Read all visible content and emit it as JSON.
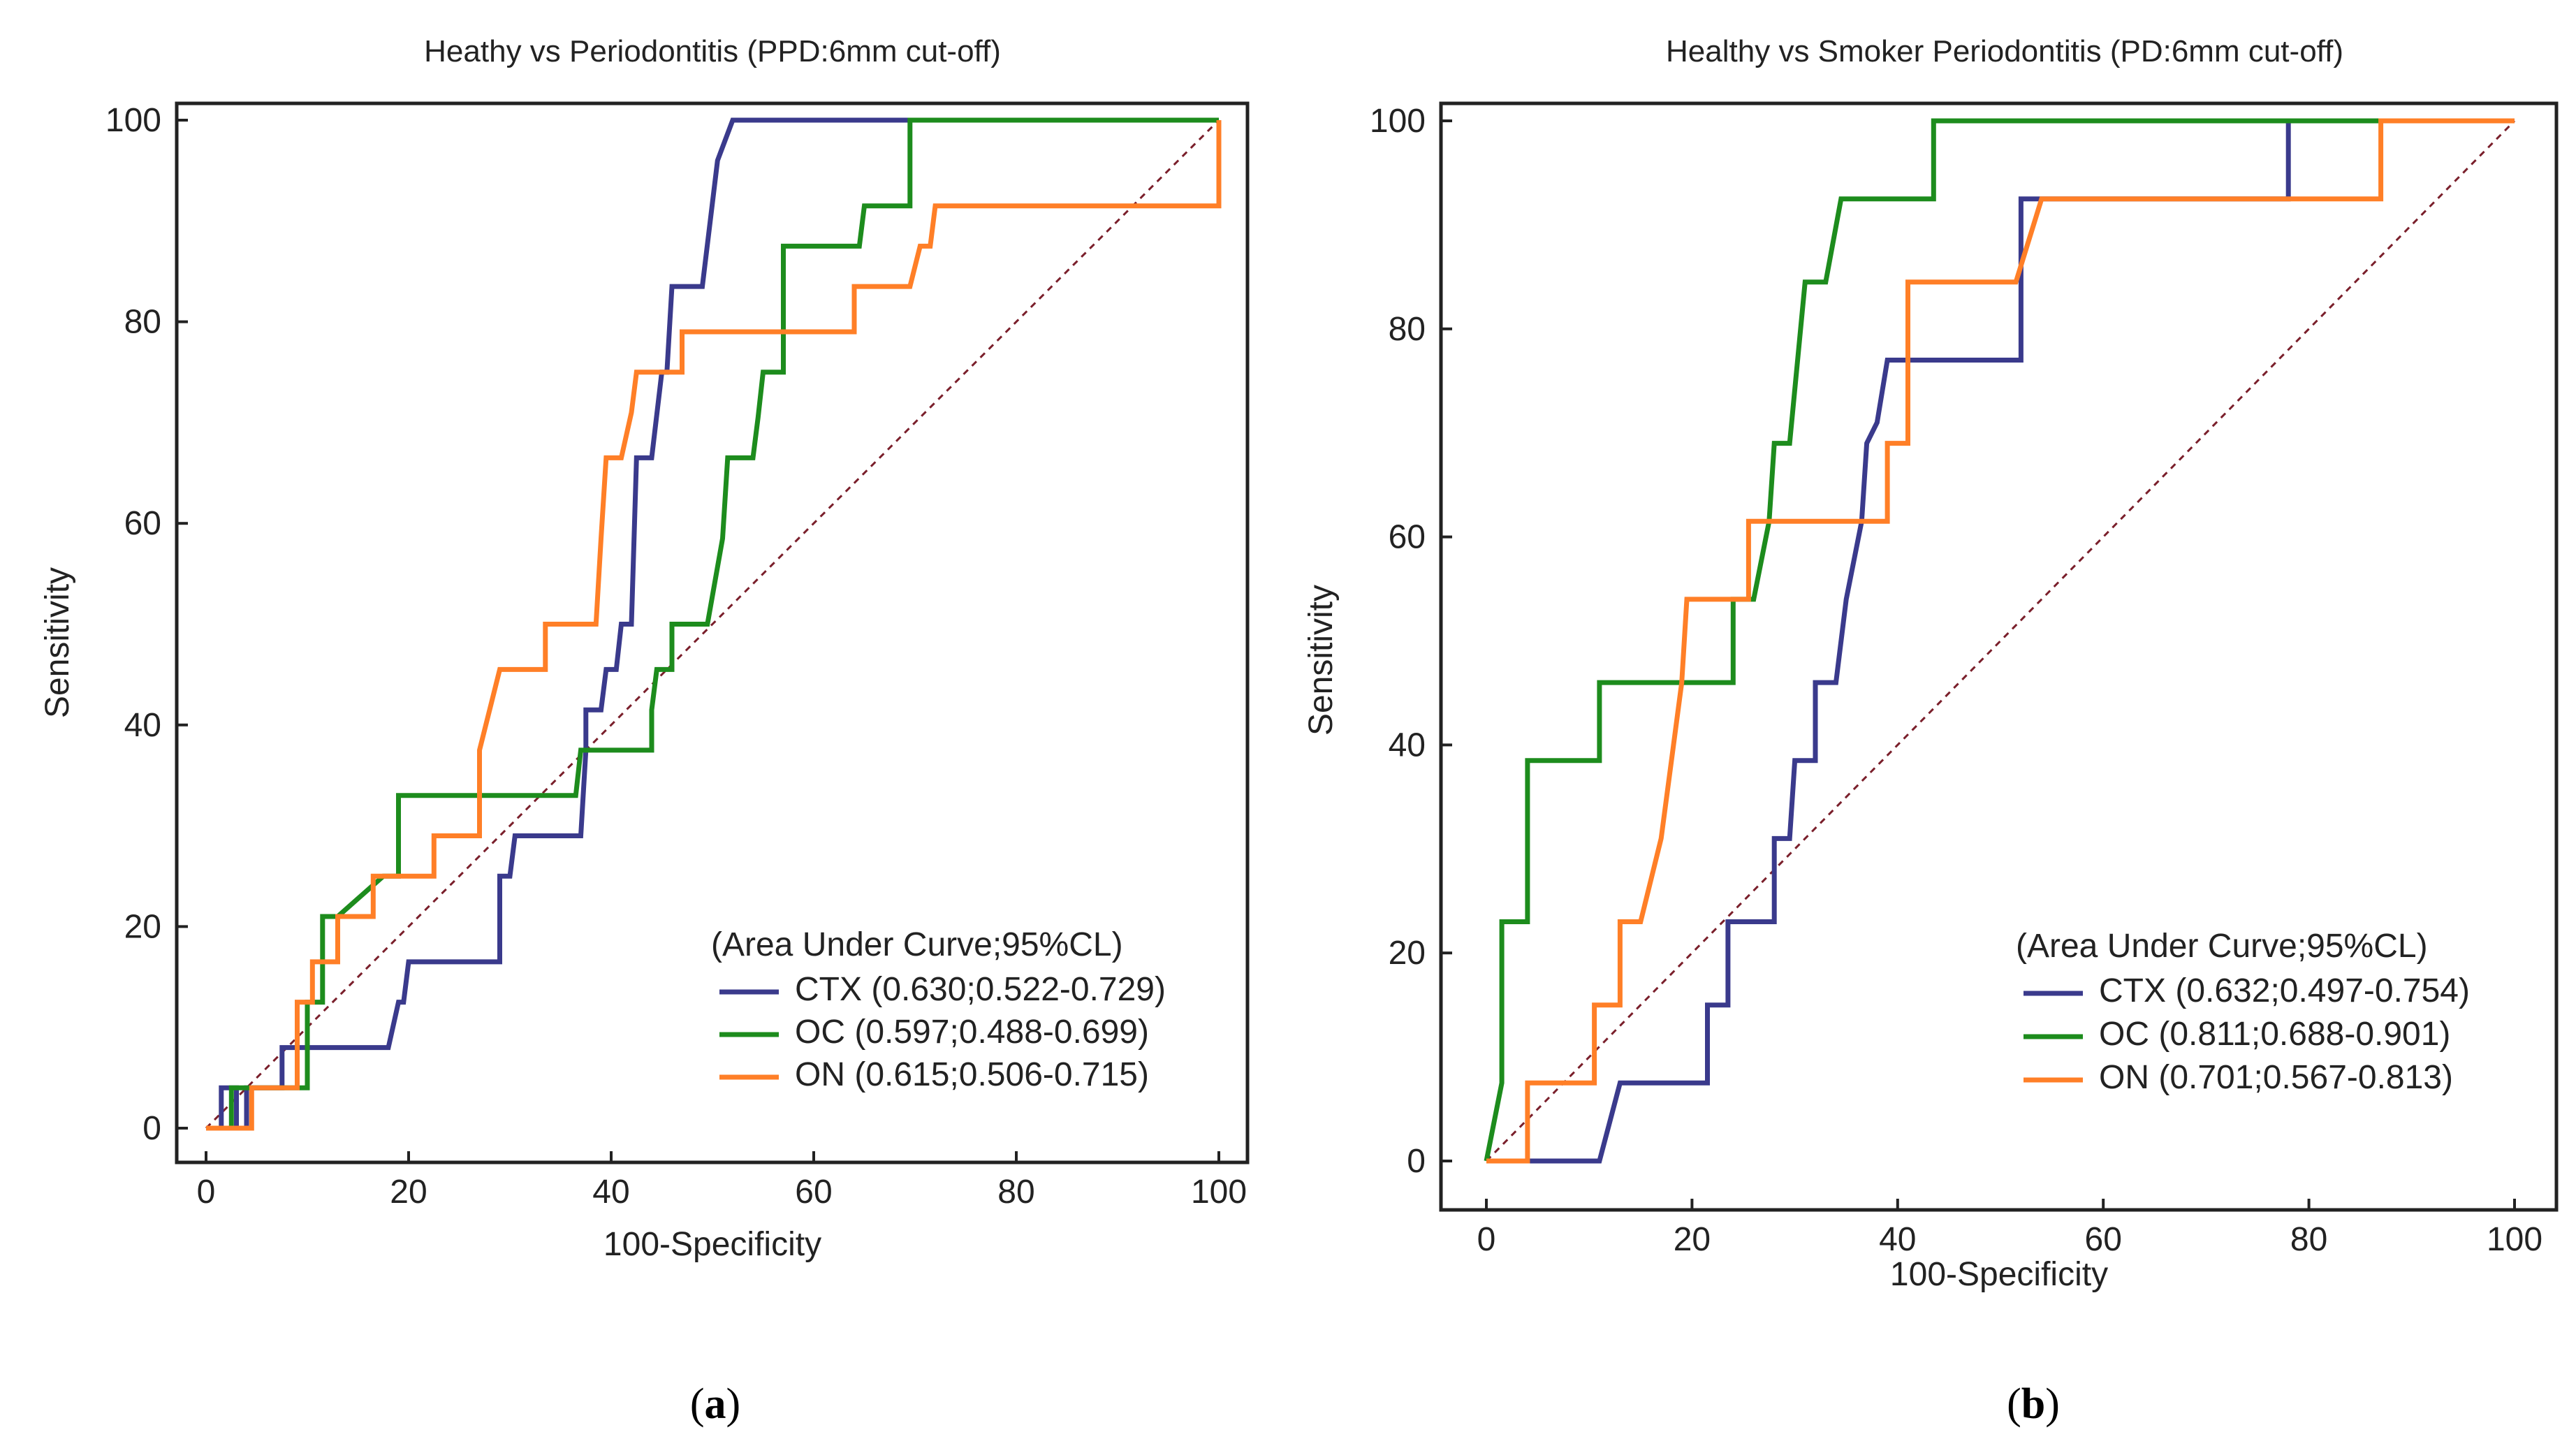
{
  "chart_data": [
    {
      "type": "line",
      "panel": "a",
      "caption_letter": "a",
      "title": "Heathy vs Periodontitis (PPD:6mm cut-off)",
      "xlabel": "100-Specificity",
      "ylabel": "Sensitivity",
      "xlim": [
        0,
        100
      ],
      "ylim": [
        0,
        100
      ],
      "xticks": [
        "0",
        "20",
        "40",
        "60",
        "80",
        "100"
      ],
      "yticks": [
        "0",
        "20",
        "40",
        "60",
        "80",
        "100"
      ],
      "legend_title": "(Area Under Curve;95%CL)",
      "legend_position": "bottom-right",
      "series": [
        {
          "name": "CTX (0.630;0.522-0.729)",
          "color": "#3a3a8c",
          "points": [
            [
              0,
              0
            ],
            [
              1.5,
              0
            ],
            [
              1.5,
              4
            ],
            [
              3,
              4
            ],
            [
              3,
              0
            ],
            [
              4,
              0
            ],
            [
              4,
              4
            ],
            [
              7.5,
              4
            ],
            [
              7.5,
              8
            ],
            [
              18,
              8
            ],
            [
              19,
              12.5
            ],
            [
              19.5,
              12.5
            ],
            [
              20,
              16.5
            ],
            [
              29,
              16.5
            ],
            [
              29,
              25
            ],
            [
              30,
              25
            ],
            [
              30.5,
              29
            ],
            [
              37,
              29
            ],
            [
              37.5,
              37.5
            ],
            [
              37.5,
              41.5
            ],
            [
              39,
              41.5
            ],
            [
              39.5,
              45.5
            ],
            [
              40.5,
              45.5
            ],
            [
              41,
              50
            ],
            [
              42,
              50
            ],
            [
              42.5,
              66.5
            ],
            [
              44,
              66.5
            ],
            [
              45,
              75
            ],
            [
              45.5,
              75
            ],
            [
              46,
              83.5
            ],
            [
              49,
              83.5
            ],
            [
              50.5,
              96
            ],
            [
              52,
              100
            ],
            [
              70,
              100
            ],
            [
              100,
              100
            ]
          ]
        },
        {
          "name": "OC (0.597;0.488-0.699)",
          "color": "#1d8c1d",
          "points": [
            [
              0,
              0
            ],
            [
              2.5,
              0
            ],
            [
              2.5,
              4
            ],
            [
              10,
              4
            ],
            [
              10,
              12.5
            ],
            [
              11.5,
              12.5
            ],
            [
              11.5,
              21
            ],
            [
              13,
              21
            ],
            [
              17.5,
              25
            ],
            [
              19,
              25
            ],
            [
              19,
              33
            ],
            [
              36.5,
              33
            ],
            [
              37,
              37.5
            ],
            [
              44,
              37.5
            ],
            [
              44,
              41.5
            ],
            [
              44.5,
              45.5
            ],
            [
              46,
              45.5
            ],
            [
              46,
              50
            ],
            [
              49.5,
              50
            ],
            [
              51,
              58.5
            ],
            [
              51.5,
              66.5
            ],
            [
              54,
              66.5
            ],
            [
              54.5,
              70.5
            ],
            [
              55,
              75
            ],
            [
              57,
              75
            ],
            [
              57,
              87.5
            ],
            [
              64.5,
              87.5
            ],
            [
              65,
              91.5
            ],
            [
              69.5,
              91.5
            ],
            [
              69.5,
              100
            ],
            [
              100,
              100
            ]
          ]
        },
        {
          "name": "ON (0.615;0.506-0.715)",
          "color": "#ff7f27",
          "points": [
            [
              0,
              0
            ],
            [
              4.5,
              0
            ],
            [
              4.5,
              4
            ],
            [
              9,
              4
            ],
            [
              9,
              12.5
            ],
            [
              10.5,
              12.5
            ],
            [
              10.5,
              16.5
            ],
            [
              13,
              16.5
            ],
            [
              13,
              21
            ],
            [
              16.5,
              21
            ],
            [
              16.5,
              25
            ],
            [
              22.5,
              25
            ],
            [
              22.5,
              29
            ],
            [
              27,
              29
            ],
            [
              27,
              37.5
            ],
            [
              28,
              41.5
            ],
            [
              29,
              45.5
            ],
            [
              33.5,
              45.5
            ],
            [
              33.5,
              50
            ],
            [
              38.5,
              50
            ],
            [
              39,
              58.5
            ],
            [
              39.5,
              66.5
            ],
            [
              41,
              66.5
            ],
            [
              42,
              71
            ],
            [
              42.5,
              75
            ],
            [
              47,
              75
            ],
            [
              47,
              79
            ],
            [
              64,
              79
            ],
            [
              64,
              83.5
            ],
            [
              69.5,
              83.5
            ],
            [
              70.5,
              87.5
            ],
            [
              71.5,
              87.5
            ],
            [
              72,
              91.5
            ],
            [
              100,
              91.5
            ],
            [
              100,
              100
            ]
          ]
        }
      ]
    },
    {
      "type": "line",
      "panel": "b",
      "caption_letter": "b",
      "title": "Healthy vs Smoker Periodontitis (PD:6mm cut-off)",
      "xlabel": "100-Specificity",
      "ylabel": "Sensitivity",
      "xlim": [
        0,
        100
      ],
      "ylim": [
        0,
        100
      ],
      "xticks": [
        "0",
        "20",
        "40",
        "60",
        "80",
        "100"
      ],
      "yticks": [
        "0",
        "20",
        "40",
        "60",
        "80",
        "100"
      ],
      "legend_title": "(Area Under Curve;95%CL)",
      "legend_position": "bottom-right",
      "series": [
        {
          "name": "CTX (0.632;0.497-0.754)",
          "color": "#3a3a8c",
          "points": [
            [
              0,
              0
            ],
            [
              11,
              0
            ],
            [
              13,
              7.5
            ],
            [
              21.5,
              7.5
            ],
            [
              21.5,
              15
            ],
            [
              23.5,
              15
            ],
            [
              23.5,
              23
            ],
            [
              28,
              23
            ],
            [
              28,
              31
            ],
            [
              29.5,
              31
            ],
            [
              30,
              38.5
            ],
            [
              32,
              38.5
            ],
            [
              32,
              46
            ],
            [
              34,
              46
            ],
            [
              35,
              54
            ],
            [
              36.5,
              61.5
            ],
            [
              37,
              69
            ],
            [
              38,
              71
            ],
            [
              39,
              77
            ],
            [
              52,
              77
            ],
            [
              52,
              92.5
            ],
            [
              78,
              92.5
            ],
            [
              78,
              100
            ],
            [
              87,
              100
            ],
            [
              100,
              100
            ]
          ]
        },
        {
          "name": "OC (0.811;0.688-0.901)",
          "color": "#1d8c1d",
          "points": [
            [
              0,
              0
            ],
            [
              1.5,
              7.5
            ],
            [
              1.5,
              23
            ],
            [
              4,
              23
            ],
            [
              4,
              38.5
            ],
            [
              11,
              38.5
            ],
            [
              11,
              46
            ],
            [
              24,
              46
            ],
            [
              24,
              54
            ],
            [
              26,
              54
            ],
            [
              27.5,
              61.5
            ],
            [
              28,
              69
            ],
            [
              29.5,
              69
            ],
            [
              31,
              84.5
            ],
            [
              33,
              84.5
            ],
            [
              34.5,
              92.5
            ],
            [
              43.5,
              92.5
            ],
            [
              43.5,
              100
            ],
            [
              100,
              100
            ]
          ]
        },
        {
          "name": "ON (0.701;0.567-0.813)",
          "color": "#ff7f27",
          "points": [
            [
              0,
              0
            ],
            [
              4,
              0
            ],
            [
              4,
              7.5
            ],
            [
              10.5,
              7.5
            ],
            [
              10.5,
              15
            ],
            [
              13,
              15
            ],
            [
              13,
              23
            ],
            [
              15,
              23
            ],
            [
              17,
              31
            ],
            [
              18,
              38.5
            ],
            [
              19,
              46
            ],
            [
              19.5,
              54
            ],
            [
              25.5,
              54
            ],
            [
              25.5,
              61.5
            ],
            [
              39,
              61.5
            ],
            [
              39,
              69
            ],
            [
              41,
              69
            ],
            [
              41,
              84.5
            ],
            [
              51.5,
              84.5
            ],
            [
              54,
              92.5
            ],
            [
              87,
              92.5
            ],
            [
              87,
              100
            ],
            [
              100,
              100
            ]
          ]
        }
      ]
    }
  ]
}
